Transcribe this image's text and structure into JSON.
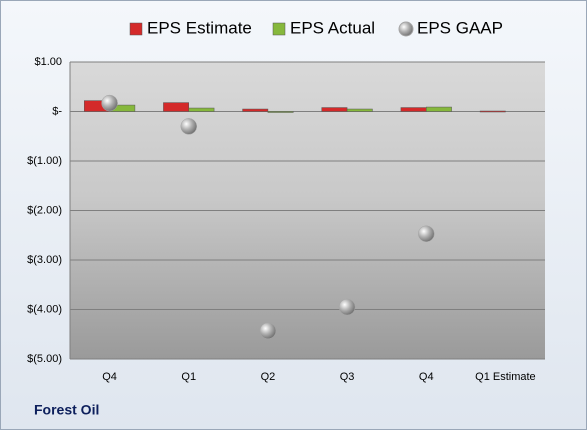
{
  "chart_data": {
    "type": "bar",
    "footer": "Forest Oil",
    "categories": [
      "Q4",
      "Q1",
      "Q2",
      "Q3",
      "Q4",
      "Q1 Estimate"
    ],
    "series": [
      {
        "name": "EPS Estimate",
        "type": "bar",
        "color": "#d42a2a",
        "values": [
          0.22,
          0.18,
          0.05,
          0.08,
          0.08,
          0.01
        ]
      },
      {
        "name": "EPS Actual",
        "type": "bar",
        "color": "#86b83c",
        "values": [
          0.13,
          0.07,
          -0.02,
          0.05,
          0.09,
          null
        ]
      },
      {
        "name": "EPS GAAP",
        "type": "scatter",
        "color": "#a6a6a6",
        "values": [
          0.17,
          -0.3,
          -4.43,
          -3.95,
          -2.47,
          null
        ]
      }
    ],
    "ylim": [
      -5,
      1
    ],
    "yticks": [
      {
        "value": 1,
        "label": "$1.00"
      },
      {
        "value": 0,
        "label": "$-"
      },
      {
        "value": -1,
        "label": "$(1.00)"
      },
      {
        "value": -2,
        "label": "$(2.00)"
      },
      {
        "value": -3,
        "label": "$(3.00)"
      },
      {
        "value": -4,
        "label": "$(4.00)"
      },
      {
        "value": -5,
        "label": "$(5.00)"
      }
    ],
    "grid": true
  }
}
